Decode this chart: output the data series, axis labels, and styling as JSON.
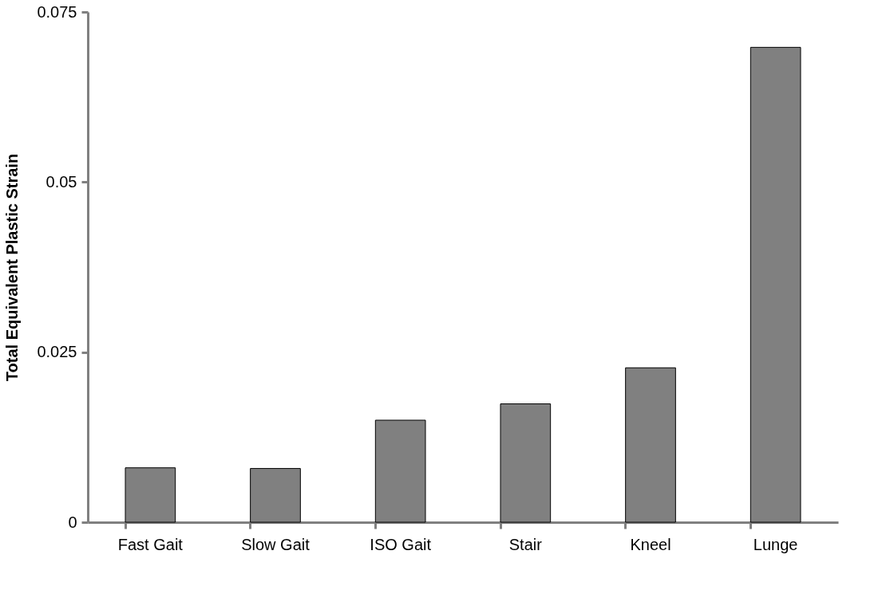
{
  "chart_data": {
    "type": "bar",
    "ylabel": "Total Equivalent Plastic Strain",
    "categories": [
      "Fast Gait",
      "Slow Gait",
      "ISO Gait",
      "Stair",
      "Kneel",
      "Lunge"
    ],
    "values": [
      0.008,
      0.0079,
      0.015,
      0.0174,
      0.0227,
      0.0698
    ],
    "color": "#808080",
    "ylim": [
      0,
      0.075
    ],
    "yticks": [
      0,
      0.025,
      0.05,
      0.075
    ],
    "grid": false
  }
}
